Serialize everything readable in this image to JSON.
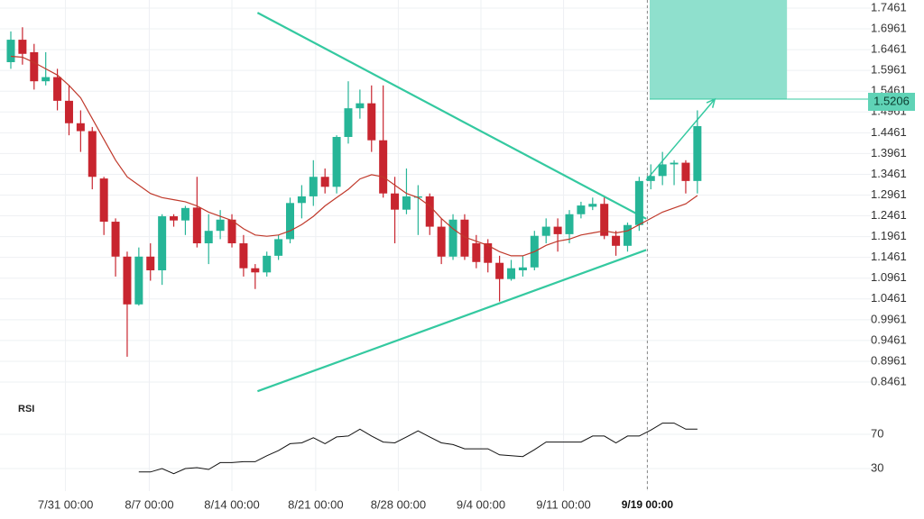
{
  "chart_data": {
    "type": "candlestick",
    "x": [
      0,
      1,
      2,
      3,
      4,
      5,
      6,
      7,
      8,
      9,
      10,
      11,
      12,
      13,
      14,
      15,
      16,
      17,
      18,
      19,
      20,
      21,
      22,
      23,
      24,
      25,
      26,
      27,
      28,
      29,
      30,
      31,
      32,
      33,
      34,
      35,
      36,
      37,
      38,
      39,
      40,
      41,
      42,
      43,
      44,
      45,
      46,
      47,
      48,
      49,
      50,
      51,
      52,
      53,
      54,
      55,
      56,
      57,
      58,
      59
    ],
    "open": [
      1.616,
      1.67,
      1.64,
      1.57,
      1.58,
      1.523,
      1.469,
      1.45,
      1.336,
      1.232,
      1.148,
      1.033,
      1.148,
      1.115,
      1.245,
      1.235,
      1.266,
      1.18,
      1.21,
      1.237,
      1.18,
      1.12,
      1.11,
      1.15,
      1.19,
      1.277,
      1.293,
      1.34,
      1.316,
      1.436,
      1.505,
      1.517,
      1.428,
      1.3,
      1.261,
      1.29,
      1.293,
      1.22,
      1.148,
      1.237,
      1.18,
      1.18,
      1.133,
      1.094,
      1.115,
      1.122,
      1.198,
      1.22,
      1.202,
      1.25,
      1.268,
      1.275,
      1.198,
      1.174,
      1.224,
      1.33,
      1.342,
      1.37,
      1.374,
      1.33
    ],
    "high": [
      1.69,
      1.7,
      1.66,
      1.64,
      1.6,
      1.56,
      1.5,
      1.46,
      1.34,
      1.24,
      1.16,
      1.17,
      1.18,
      1.25,
      1.25,
      1.27,
      1.34,
      1.25,
      1.26,
      1.25,
      1.2,
      1.13,
      1.16,
      1.2,
      1.29,
      1.32,
      1.38,
      1.36,
      1.44,
      1.57,
      1.55,
      1.56,
      1.56,
      1.34,
      1.36,
      1.32,
      1.3,
      1.24,
      1.25,
      1.25,
      1.2,
      1.19,
      1.15,
      1.14,
      1.15,
      1.21,
      1.24,
      1.24,
      1.26,
      1.28,
      1.29,
      1.29,
      1.21,
      1.23,
      1.34,
      1.37,
      1.4,
      1.38,
      1.38,
      1.5
    ],
    "low": [
      1.6,
      1.61,
      1.55,
      1.56,
      1.5,
      1.44,
      1.4,
      1.31,
      1.2,
      1.1,
      0.907,
      1.03,
      1.09,
      1.08,
      1.22,
      1.2,
      1.17,
      1.13,
      1.19,
      1.17,
      1.1,
      1.07,
      1.1,
      1.14,
      1.18,
      1.24,
      1.27,
      1.3,
      1.3,
      1.42,
      1.48,
      1.4,
      1.29,
      1.18,
      1.25,
      1.2,
      1.2,
      1.13,
      1.14,
      1.14,
      1.12,
      1.11,
      1.04,
      1.09,
      1.1,
      1.115,
      1.18,
      1.16,
      1.18,
      1.24,
      1.26,
      1.19,
      1.15,
      1.16,
      1.21,
      1.31,
      1.32,
      1.32,
      1.3,
      1.3
    ],
    "close": [
      1.67,
      1.636,
      1.57,
      1.58,
      1.523,
      1.469,
      1.45,
      1.34,
      1.232,
      1.148,
      1.033,
      1.148,
      1.115,
      1.245,
      1.235,
      1.265,
      1.18,
      1.21,
      1.237,
      1.18,
      1.12,
      1.11,
      1.15,
      1.19,
      1.277,
      1.293,
      1.34,
      1.316,
      1.436,
      1.505,
      1.517,
      1.428,
      1.3,
      1.261,
      1.293,
      1.293,
      1.22,
      1.148,
      1.237,
      1.148,
      1.135,
      1.133,
      1.094,
      1.12,
      1.122,
      1.198,
      1.22,
      1.202,
      1.25,
      1.271,
      1.275,
      1.198,
      1.174,
      1.224,
      1.33,
      1.342,
      1.37,
      1.374,
      1.33,
      1.462
    ],
    "up_color": "#26b597",
    "down_color": "#c8252f",
    "ma": {
      "color": "#c0392b",
      "values": [
        1.63,
        1.628,
        1.615,
        1.6,
        1.585,
        1.56,
        1.53,
        1.48,
        1.43,
        1.38,
        1.34,
        1.32,
        1.3,
        1.29,
        1.285,
        1.28,
        1.27,
        1.255,
        1.245,
        1.235,
        1.215,
        1.2,
        1.197,
        1.2,
        1.21,
        1.225,
        1.245,
        1.27,
        1.29,
        1.31,
        1.335,
        1.345,
        1.34,
        1.32,
        1.3,
        1.29,
        1.27,
        1.24,
        1.215,
        1.195,
        1.185,
        1.175,
        1.16,
        1.15,
        1.15,
        1.16,
        1.175,
        1.185,
        1.19,
        1.2,
        1.205,
        1.21,
        1.205,
        1.21,
        1.225,
        1.24,
        1.255,
        1.265,
        1.275,
        1.295
      ]
    },
    "xlim": [
      -0.93,
      73.9
    ],
    "xticks": [
      {
        "value": 4.7,
        "label": "7/31 00:00"
      },
      {
        "value": 11.9,
        "label": "8/7 00:00"
      },
      {
        "value": 19.0,
        "label": "8/14 00:00"
      },
      {
        "value": 26.2,
        "label": "8/21 00:00"
      },
      {
        "value": 33.3,
        "label": "8/28 00:00"
      },
      {
        "value": 40.4,
        "label": "9/4 00:00"
      },
      {
        "value": 47.5,
        "label": "9/11 00:00"
      },
      {
        "value": 54.7,
        "label": "9/19 00:00"
      }
    ],
    "crosshair_x": 54.7,
    "ylim": [
      0.8114,
      1.7656
    ],
    "yticks": [
      1.7461,
      1.6961,
      1.6461,
      1.5961,
      1.5461,
      1.4961,
      1.4461,
      1.3961,
      1.3461,
      1.2961,
      1.2461,
      1.1961,
      1.1461,
      1.0961,
      1.0461,
      0.9961,
      0.9461,
      0.8961,
      0.8461
    ],
    "grid": true,
    "last_price": 1.5206,
    "trend_lines": [
      {
        "x": [
          21.2,
          54.6
        ],
        "y": [
          1.735,
          1.239
        ]
      },
      {
        "x": [
          21.2,
          54.6
        ],
        "y": [
          0.824,
          1.164
        ]
      }
    ],
    "drawing_color": "#34c9a0",
    "box": {
      "x": [
        54.9,
        66.7
      ],
      "y": [
        1.527,
        1.766
      ],
      "color": "#8fe0cd"
    },
    "arrow": {
      "x": [
        54.6,
        60.5
      ],
      "y": [
        1.332,
        1.527
      ]
    },
    "rsi": {
      "label": "RSI",
      "color": "#111111",
      "ylim": [
        20,
        100
      ],
      "yticks": [
        70,
        30
      ],
      "values": [
        null,
        null,
        null,
        null,
        null,
        null,
        null,
        null,
        null,
        null,
        null,
        26,
        26,
        30,
        24,
        30,
        31,
        29,
        37,
        37,
        38,
        38,
        45,
        51,
        59,
        60,
        66,
        59,
        67,
        68,
        76,
        68,
        61,
        60,
        67,
        74,
        67,
        60,
        58,
        53,
        53,
        53,
        46,
        45,
        44,
        52,
        61,
        61,
        61,
        61,
        68,
        68,
        60,
        68,
        68,
        75,
        83,
        83,
        76,
        76
      ]
    }
  }
}
